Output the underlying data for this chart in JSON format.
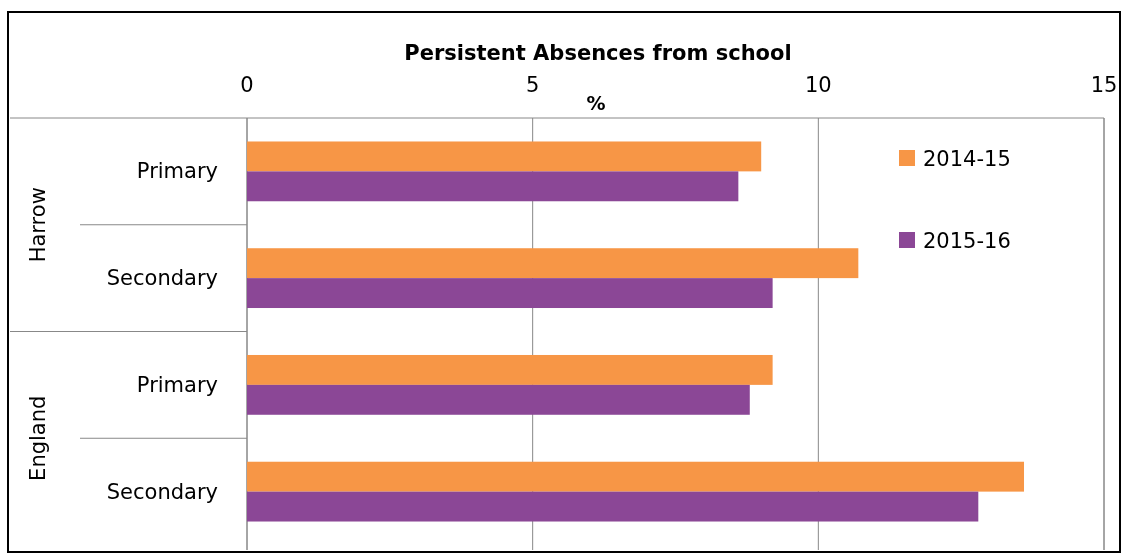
{
  "chart_data": {
    "type": "bar",
    "orientation": "horizontal",
    "title": "Persistent Absences from school",
    "xlabel": "%",
    "categories": [
      "Primary",
      "Secondary",
      "Primary",
      "Secondary"
    ],
    "annotations": [
      "Harrow",
      "England"
    ],
    "series": [
      {
        "name": "2014-15",
        "color": "#f79646",
        "values": [
          9.0,
          10.7,
          9.2,
          13.6
        ]
      },
      {
        "name": "2015-16",
        "color": "#8b4796",
        "values": [
          8.6,
          9.2,
          8.8,
          12.8
        ]
      }
    ],
    "xlim": [
      0,
      15
    ],
    "xticks": [
      0,
      5,
      10,
      15
    ],
    "grid": "x",
    "legend": "top right"
  }
}
